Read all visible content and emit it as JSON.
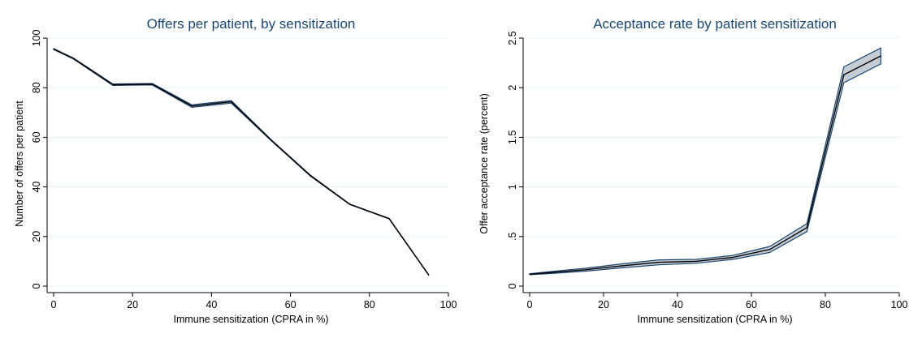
{
  "chart_data": [
    {
      "type": "line",
      "title": "Offers per patient, by sensitization",
      "xlabel": "Immune sensitization (CPRA in %)",
      "ylabel": "Number of offers per patient",
      "xlim": [
        0,
        100
      ],
      "ylim": [
        0,
        100
      ],
      "xticks": [
        0,
        20,
        40,
        60,
        80,
        100
      ],
      "yticks": [
        0,
        20,
        40,
        60,
        80,
        100
      ],
      "xtick_labels": [
        "0",
        "20",
        "40",
        "60",
        "80",
        "100"
      ],
      "ytick_labels": [
        "0",
        "20",
        "40",
        "60",
        "80",
        "100"
      ],
      "grid": true,
      "x": [
        0,
        5,
        15,
        25,
        35,
        45,
        55,
        65,
        75,
        85,
        95
      ],
      "series": [
        {
          "values": [
            95.6,
            91.8,
            81.2,
            81.4,
            72.6,
            74.3,
            59.0,
            44.6,
            33.0,
            27.2,
            4.5
          ],
          "lower": [
            95.4,
            91.6,
            80.9,
            81.1,
            72.1,
            73.8,
            58.8,
            44.4,
            32.9,
            27.1,
            4.4
          ],
          "upper": [
            95.8,
            92.0,
            81.5,
            81.7,
            73.1,
            74.8,
            59.2,
            44.8,
            33.1,
            27.3,
            4.6
          ]
        }
      ]
    },
    {
      "type": "line",
      "title": "Acceptance rate by patient sensitization",
      "xlabel": "Immune sensitization (CPRA in %)",
      "ylabel": "Offer acceptance rate (percent)",
      "xlim": [
        0,
        100
      ],
      "ylim": [
        0,
        2.5
      ],
      "xticks": [
        0,
        20,
        40,
        60,
        80,
        100
      ],
      "yticks": [
        0,
        0.5,
        1,
        1.5,
        2,
        2.5
      ],
      "xtick_labels": [
        "0",
        "20",
        "40",
        "60",
        "80",
        "100"
      ],
      "ytick_labels": [
        "0",
        ".5",
        "1",
        "1.5",
        "2",
        "2.5"
      ],
      "grid": true,
      "x": [
        0,
        5,
        15,
        25,
        35,
        45,
        55,
        65,
        75,
        85,
        95
      ],
      "series": [
        {
          "values": [
            0.12,
            0.135,
            0.165,
            0.205,
            0.24,
            0.25,
            0.29,
            0.37,
            0.59,
            2.13,
            2.32
          ],
          "lower": [
            0.115,
            0.125,
            0.15,
            0.185,
            0.215,
            0.23,
            0.27,
            0.34,
            0.55,
            2.05,
            2.24
          ],
          "upper": [
            0.125,
            0.145,
            0.18,
            0.225,
            0.265,
            0.27,
            0.31,
            0.4,
            0.63,
            2.21,
            2.4
          ]
        }
      ]
    }
  ],
  "colors": {
    "line": "#000000",
    "band": "#c5ccd3",
    "band_edge": "#1a476f",
    "grid": "#eaf2f3",
    "title": "#1a476f"
  }
}
